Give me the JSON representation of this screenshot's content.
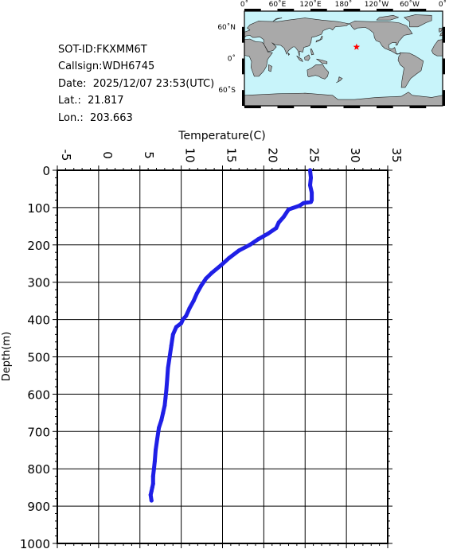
{
  "info": {
    "sot_id": "SOT-ID:FKXMM6T",
    "callsign": "Callsign:WDH6745",
    "date": "Date:  2025/12/07 23:53(UTC)",
    "lat": "Lat.:  21.817",
    "lon": "Lon.:  203.663"
  },
  "map": {
    "lon_labels": [
      "0˚",
      "60˚E",
      "120˚E",
      "180˚",
      "120˚W",
      "60˚W",
      "0˚"
    ],
    "lat_labels": [
      "60˚N",
      "0˚",
      "60˚S"
    ],
    "station": {
      "lat": 21.817,
      "lon": 203.663
    },
    "ocean_color": "#c8f4fa",
    "land_color": "#a9a9a9",
    "marker_color": "#ff0000",
    "marker_icon": "star-icon"
  },
  "chart_data": {
    "type": "line",
    "title": "",
    "xlabel": "Temperature(C)",
    "ylabel": "Depth(m)",
    "xlim": [
      -5,
      35
    ],
    "ylim": [
      0,
      1000
    ],
    "y_inverted": true,
    "x_ticks": [
      -5,
      0,
      5,
      10,
      15,
      20,
      25,
      30,
      35
    ],
    "y_ticks": [
      0,
      100,
      200,
      300,
      400,
      500,
      600,
      700,
      800,
      900,
      1000
    ],
    "grid": true,
    "line_color": "#1f1fe6",
    "series": [
      {
        "x": [
          25.6,
          25.7,
          25.6,
          25.8,
          25.8,
          25.7,
          24.8,
          24.3,
          23.0,
          22.4,
          21.8,
          21.5,
          20.5,
          19.3,
          18.3,
          17.0,
          15.8,
          14.8,
          13.7,
          13.0,
          12.4,
          11.9,
          11.5,
          11.0,
          10.6,
          10.2,
          10.0,
          9.4,
          9.0,
          8.8,
          8.6,
          8.4,
          8.3,
          8.2,
          8.1,
          8.0,
          7.8,
          7.6,
          7.3,
          7.1,
          6.9,
          6.8,
          6.7,
          6.6,
          6.6,
          6.5,
          6.4,
          6.3,
          6.4
        ],
        "y": [
          0,
          20,
          40,
          60,
          80,
          85,
          88,
          95,
          105,
          125,
          140,
          155,
          170,
          185,
          200,
          215,
          235,
          255,
          275,
          290,
          310,
          330,
          350,
          370,
          390,
          400,
          410,
          420,
          440,
          470,
          500,
          530,
          560,
          590,
          610,
          630,
          650,
          670,
          690,
          720,
          750,
          780,
          800,
          820,
          840,
          850,
          860,
          870,
          885
        ]
      }
    ]
  }
}
